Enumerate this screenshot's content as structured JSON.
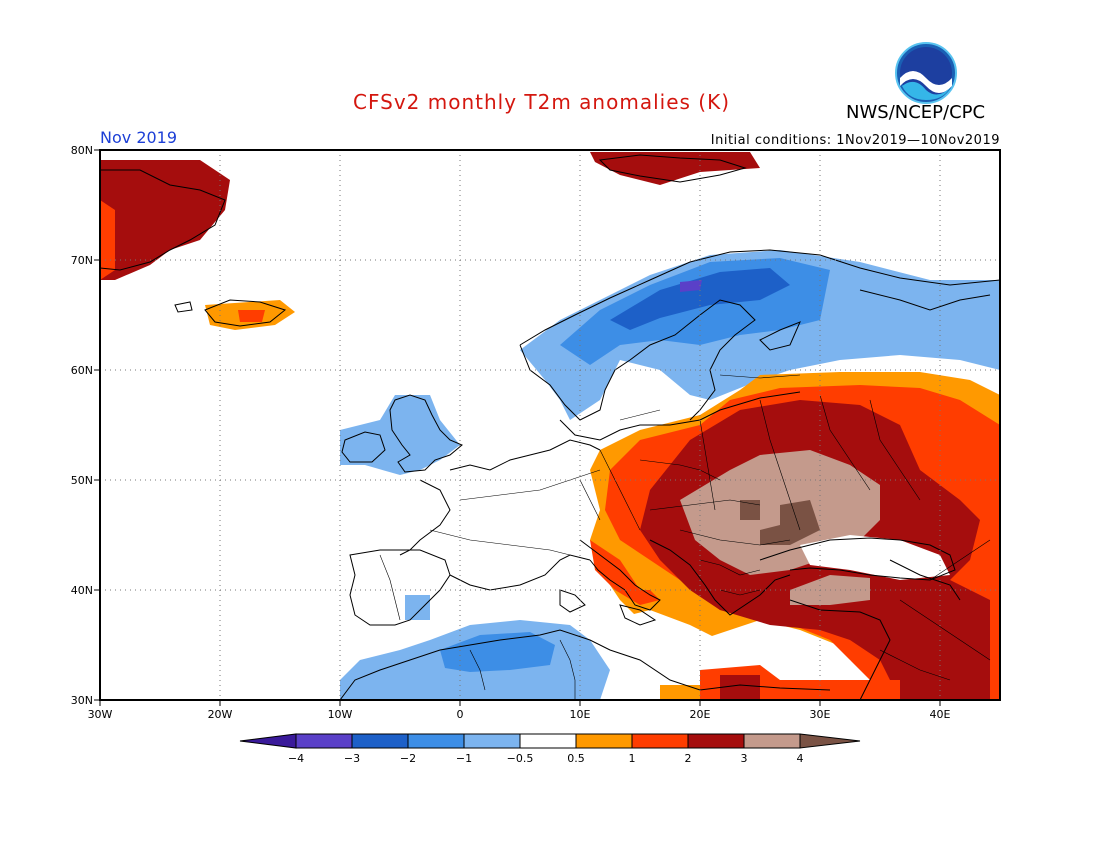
{
  "header": {
    "title": "CFSv2 monthly T2m anomalies (K)",
    "agency": "NWS/NCEP/CPC",
    "month": "Nov 2019",
    "initial_conditions": "Initial conditions: 1Nov2019—10Nov2019"
  },
  "map": {
    "lon_range": [
      -30,
      45
    ],
    "lat_range": [
      30,
      80
    ],
    "lat_ticks": [
      "30N",
      "40N",
      "50N",
      "60N",
      "70N",
      "80N"
    ],
    "lon_ticks": [
      "30W",
      "20W",
      "10W",
      "0",
      "10E",
      "20E",
      "30E",
      "40E"
    ]
  },
  "colorbar": {
    "labels": [
      "−4",
      "−3",
      "−2",
      "−1",
      "−0.5",
      "0.5",
      "1",
      "2",
      "3",
      "4"
    ],
    "colors": [
      "#3a1a9a",
      "#5a40c8",
      "#1d60c8",
      "#3d8ee6",
      "#7cb4ef",
      "#ffffff",
      "#ff9900",
      "#ff3d00",
      "#a50d0d",
      "#c49a8c",
      "#7a5244"
    ]
  }
}
